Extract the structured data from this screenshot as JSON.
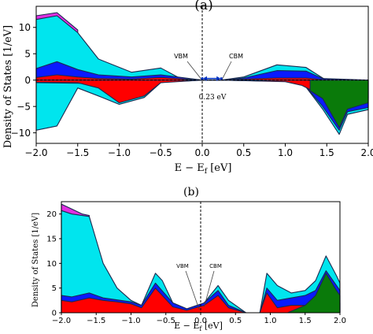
{
  "colors": {
    "cyan": "#00e5ee",
    "blue": "#0a1aff",
    "red": "#ff0000",
    "green": "#0a7a0a",
    "magenta": "#e030e0",
    "edge": "#1a2a50",
    "arrow": "#0030c0"
  },
  "chart_data": [
    {
      "panel_label": "(a)",
      "type": "area",
      "xlabel": "E − E",
      "xlabel_sub": "f",
      "xlabel_unit": " [eV]",
      "ylabel": "Density of States [1/eV]",
      "xlim": [
        -2.0,
        2.0
      ],
      "ylim": [
        -12,
        14
      ],
      "xticks": [
        "−2.0",
        "−1.5",
        "−1.0",
        "−0.5",
        "0.0",
        "0.5",
        "1.0",
        "1.5",
        "2.0"
      ],
      "xtick_values": [
        -2.0,
        -1.5,
        -1.0,
        -0.5,
        0.0,
        0.5,
        1.0,
        1.5,
        2.0
      ],
      "yticks": [
        "−10",
        "−5",
        "0",
        "5",
        "10"
      ],
      "ytick_values": [
        -10,
        -5,
        0,
        5,
        10
      ],
      "annotations": {
        "vbm": "VBM",
        "cbm": "CBM",
        "gap": "0.23 eV"
      },
      "series": [
        {
          "color": "magenta",
          "x": [
            -2.0,
            -1.75,
            -1.5
          ],
          "y": [
            12.2,
            12.8,
            9.5
          ]
        },
        {
          "color": "cyan",
          "x": [
            -2.0,
            -1.75,
            -1.5,
            -1.25,
            -0.85,
            -0.5,
            -0.25,
            0.0,
            0.23,
            0.5,
            0.9,
            1.25,
            1.45,
            1.5,
            2.0
          ],
          "y": [
            11.5,
            12.2,
            9.0,
            4.0,
            1.5,
            2.3,
            0.2,
            0.0,
            0.0,
            0.6,
            2.9,
            2.4,
            0.4,
            0.0,
            0.0
          ]
        },
        {
          "color": "blue",
          "x": [
            -2.0,
            -1.75,
            -1.5,
            -1.25,
            -0.85,
            -0.5,
            0.0,
            0.23,
            0.5,
            0.9,
            1.25,
            1.45,
            2.0
          ],
          "y": [
            2.2,
            3.5,
            2.0,
            1.0,
            0.6,
            1.0,
            0.0,
            0.0,
            0.4,
            1.8,
            1.7,
            0.3,
            0.0
          ]
        },
        {
          "color": "red",
          "x": [
            -2.0,
            -1.75,
            -1.5,
            -1.25,
            -0.85,
            -0.5,
            0.0,
            0.23,
            0.5,
            0.9,
            1.25,
            1.45,
            2.0
          ],
          "y": [
            0.5,
            1.0,
            0.6,
            0.3,
            0.2,
            0.5,
            0.0,
            0.0,
            0.2,
            0.4,
            0.4,
            0.1,
            0.0
          ]
        },
        {
          "color": "cyan",
          "x": [
            -2.0,
            -1.75,
            -1.5,
            -1.25,
            -1.0,
            -0.7,
            -0.5,
            -0.25,
            0.0,
            0.23,
            1.2,
            1.45,
            1.65,
            1.75,
            2.0
          ],
          "y": [
            -9.5,
            -8.7,
            -1.5,
            -3.0,
            -4.6,
            -3.3,
            -0.5,
            0.0,
            0.0,
            0.0,
            -0.3,
            -5.5,
            -10.3,
            -6.5,
            -5.6
          ]
        },
        {
          "color": "blue",
          "x": [
            -2.0,
            -1.5,
            -1.0,
            -0.7,
            -0.5,
            0.0,
            0.23,
            1.2,
            1.45,
            1.65,
            1.75,
            2.0
          ],
          "y": [
            -0.5,
            -0.6,
            -0.8,
            -0.9,
            -0.4,
            0.0,
            0.0,
            -0.3,
            -5.0,
            -9.5,
            -6.0,
            -5.2
          ]
        },
        {
          "color": "red",
          "x": [
            -2.0,
            -1.5,
            -1.25,
            -1.0,
            -0.7,
            -0.5,
            0.0,
            0.23,
            1.0,
            1.2,
            1.4,
            1.65,
            1.75,
            2.0
          ],
          "y": [
            -0.4,
            -0.5,
            -1.5,
            -4.3,
            -3.0,
            -0.5,
            0.0,
            0.0,
            -0.3,
            -1.0,
            -2.6,
            -4.0,
            -3.5,
            -3.5
          ]
        },
        {
          "color": "green",
          "x": [
            1.3,
            1.45,
            1.65,
            1.75,
            2.0
          ],
          "y": [
            -2.0,
            -3.5,
            -9.0,
            -5.5,
            -4.3
          ]
        }
      ]
    },
    {
      "panel_label": "(b)",
      "type": "area",
      "xlabel": "E − E",
      "xlabel_sub": "f",
      "xlabel_unit": " [eV]",
      "ylabel": "Density of States [1/eV]",
      "xlim": [
        -2.0,
        2.0
      ],
      "ylim": [
        0,
        22.5
      ],
      "xticks": [
        "−2.0",
        "−1.5",
        "−1.0",
        "−0.5",
        "0.0",
        "0.5",
        "1.0",
        "1.5",
        "2.0"
      ],
      "xtick_values": [
        -2.0,
        -1.5,
        -1.0,
        -0.5,
        0.0,
        0.5,
        1.0,
        1.5,
        2.0
      ],
      "yticks": [
        "0",
        "5",
        "10",
        "15",
        "20"
      ],
      "ytick_values": [
        0,
        5,
        10,
        15,
        20
      ],
      "annotations": {
        "vbm": "VBM",
        "cbm": "CBM"
      },
      "series": [
        {
          "color": "magenta",
          "x": [
            -2.0,
            -1.85,
            -1.7,
            -1.6
          ],
          "y": [
            22.0,
            21.0,
            20.0,
            19.7
          ]
        },
        {
          "color": "cyan",
          "x": [
            -2.0,
            -1.85,
            -1.6,
            -1.4,
            -1.2,
            -1.0,
            -0.85,
            -0.65,
            -0.55,
            -0.4,
            -0.2,
            -0.05,
            0.05,
            0.25,
            0.4,
            0.55,
            0.65,
            0.85,
            0.95,
            1.1,
            1.3,
            1.5,
            1.65,
            1.8,
            1.95,
            2.0
          ],
          "y": [
            20.7,
            20.0,
            19.5,
            10.0,
            5.0,
            2.5,
            1.5,
            8.0,
            6.5,
            2.0,
            0.8,
            1.0,
            2.0,
            5.5,
            2.5,
            1.0,
            0.0,
            0.0,
            8.0,
            5.5,
            4.0,
            4.5,
            6.5,
            11.5,
            7.5,
            6.0
          ]
        },
        {
          "color": "blue",
          "x": [
            -2.0,
            -1.85,
            -1.6,
            -1.4,
            -1.2,
            -1.0,
            -0.85,
            -0.65,
            -0.4,
            -0.2,
            0.05,
            0.25,
            0.4,
            0.65,
            0.85,
            0.95,
            1.1,
            1.3,
            1.5,
            1.65,
            1.8,
            1.95,
            2.0
          ],
          "y": [
            3.5,
            3.2,
            4.0,
            3.0,
            2.6,
            2.2,
            1.5,
            6.0,
            2.0,
            0.8,
            2.0,
            4.5,
            1.5,
            0.0,
            0.0,
            5.0,
            2.5,
            3.0,
            3.5,
            4.5,
            8.5,
            5.5,
            4.5
          ]
        },
        {
          "color": "red",
          "x": [
            -2.0,
            -1.85,
            -1.6,
            -1.4,
            -1.2,
            -1.0,
            -0.85,
            -0.65,
            -0.4,
            -0.2,
            0.05,
            0.25,
            0.4,
            0.65,
            0.85,
            0.95,
            1.1,
            1.3,
            1.5,
            1.65,
            1.8,
            1.95,
            2.0
          ],
          "y": [
            2.5,
            2.2,
            3.0,
            2.5,
            2.2,
            1.8,
            1.0,
            5.0,
            1.2,
            0.5,
            1.5,
            3.5,
            1.0,
            0.0,
            0.0,
            4.0,
            1.0,
            1.5,
            1.5,
            2.0,
            2.5,
            2.5,
            2.0
          ]
        },
        {
          "color": "green",
          "x": [
            1.25,
            1.5,
            1.65,
            1.8,
            1.95,
            2.0
          ],
          "y": [
            0.0,
            1.5,
            3.5,
            8.0,
            4.5,
            3.5
          ]
        }
      ]
    }
  ]
}
